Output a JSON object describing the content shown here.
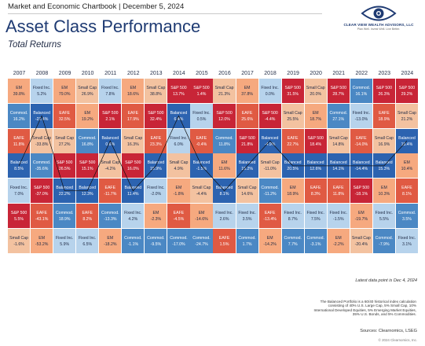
{
  "header": {
    "title": "Market and Economic Chartbook | December 5, 2024",
    "logo_name": "CLEAR VIEW WEALTH ADVISORS, LLC",
    "logo_sub": "Plan Well. Invest Well. Live Better."
  },
  "page": {
    "title": "Asset Class Performance",
    "subtitle": "Total Returns"
  },
  "colors": {
    "EM": "#f6a97f",
    "Fixed Inc.": "#b7d3ec",
    "Small Cap": "#f3c2a0",
    "S&P 500": "#c82537",
    "Commod.": "#4b88c4",
    "Balanced": "#2c63b0",
    "EAFE": "#e05a43"
  },
  "chart_data": {
    "type": "table",
    "title": "Asset Class Performance",
    "subtitle": "Total Returns",
    "years": [
      "2007",
      "2008",
      "2009",
      "2010",
      "2011",
      "2012",
      "2013",
      "2014",
      "2015",
      "2016",
      "2017",
      "2018",
      "2019",
      "2020",
      "2021",
      "2022",
      "2023",
      "2024"
    ],
    "columns": [
      [
        [
          "EM",
          "39.8%"
        ],
        [
          "Commod.",
          "16.2%"
        ],
        [
          "EAFE",
          "11.8%"
        ],
        [
          "Balanced",
          "8.5%"
        ],
        [
          "Fixed Inc.",
          "7.0%"
        ],
        [
          "S&P 500",
          "5.5%"
        ],
        [
          "Small Cap",
          "-1.6%"
        ]
      ],
      [
        [
          "Fixed Inc.",
          "5.2%"
        ],
        [
          "Balanced",
          "-23.4%"
        ],
        [
          "Small Cap",
          "-33.8%"
        ],
        [
          "Commod.",
          "-35.6%"
        ],
        [
          "S&P 500",
          "-37.0%"
        ],
        [
          "EAFE",
          "-43.1%"
        ],
        [
          "EM",
          "-53.2%"
        ]
      ],
      [
        [
          "EM",
          "79.0%"
        ],
        [
          "EAFE",
          "32.5%"
        ],
        [
          "Small Cap",
          "27.2%"
        ],
        [
          "S&P 500",
          "26.5%"
        ],
        [
          "Balanced",
          "22.2%"
        ],
        [
          "Commod.",
          "18.9%"
        ],
        [
          "Fixed Inc.",
          "5.9%"
        ]
      ],
      [
        [
          "Small Cap",
          "26.9%"
        ],
        [
          "EM",
          "19.2%"
        ],
        [
          "Commod.",
          "16.8%"
        ],
        [
          "S&P 500",
          "15.1%"
        ],
        [
          "Balanced",
          "12.3%"
        ],
        [
          "EAFE",
          "8.2%"
        ],
        [
          "Fixed Inc.",
          "6.5%"
        ]
      ],
      [
        [
          "Fixed Inc.",
          "7.8%"
        ],
        [
          "S&P 500",
          "2.1%"
        ],
        [
          "Balanced",
          "0.6%"
        ],
        [
          "Small Cap",
          "-4.2%"
        ],
        [
          "EAFE",
          "-11.7%"
        ],
        [
          "Commod.",
          "-13.3%"
        ],
        [
          "EM",
          "-18.2%"
        ]
      ],
      [
        [
          "EM",
          "18.6%"
        ],
        [
          "EAFE",
          "17.9%"
        ],
        [
          "Small Cap",
          "16.3%"
        ],
        [
          "S&P 500",
          "16.0%"
        ],
        [
          "Balanced",
          "11.4%"
        ],
        [
          "Fixed Inc.",
          "4.2%"
        ],
        [
          "Commod.",
          "-1.1%"
        ]
      ],
      [
        [
          "Small Cap",
          "38.8%"
        ],
        [
          "S&P 500",
          "32.4%"
        ],
        [
          "EAFE",
          "23.3%"
        ],
        [
          "Balanced",
          "15.9%"
        ],
        [
          "Fixed Inc.",
          "-2.0%"
        ],
        [
          "EM",
          "-2.3%"
        ],
        [
          "Commod.",
          "-9.5%"
        ]
      ],
      [
        [
          "S&P 500",
          "13.7%"
        ],
        [
          "Balanced",
          "6.4%"
        ],
        [
          "Fixed Inc.",
          "6.0%"
        ],
        [
          "Small Cap",
          "4.9%"
        ],
        [
          "EM",
          "-1.8%"
        ],
        [
          "EAFE",
          "-4.5%"
        ],
        [
          "Commod.",
          "-17.0%"
        ]
      ],
      [
        [
          "S&P 500",
          "1.4%"
        ],
        [
          "Fixed Inc.",
          "0.5%"
        ],
        [
          "EAFE",
          "-0.4%"
        ],
        [
          "Balanced",
          "-1.5%"
        ],
        [
          "Small Cap",
          "-4.4%"
        ],
        [
          "EM",
          "-14.6%"
        ],
        [
          "Commod.",
          "-24.7%"
        ]
      ],
      [
        [
          "Small Cap",
          "21.3%"
        ],
        [
          "S&P 500",
          "12.0%"
        ],
        [
          "Commod.",
          "11.8%"
        ],
        [
          "EM",
          "11.6%"
        ],
        [
          "Balanced",
          "8.1%"
        ],
        [
          "Fixed Inc.",
          "2.6%"
        ],
        [
          "EAFE",
          "1.5%"
        ]
      ],
      [
        [
          "EM",
          "37.8%"
        ],
        [
          "EAFE",
          "25.6%"
        ],
        [
          "S&P 500",
          "21.8%"
        ],
        [
          "Balanced",
          "15.2%"
        ],
        [
          "Small Cap",
          "14.6%"
        ],
        [
          "Fixed Inc.",
          "3.5%"
        ],
        [
          "Commod.",
          "1.7%"
        ]
      ],
      [
        [
          "Fixed Inc.",
          "0.0%"
        ],
        [
          "S&P 500",
          "-4.4%"
        ],
        [
          "Balanced",
          "-4.9%"
        ],
        [
          "Small Cap",
          "-11.0%"
        ],
        [
          "Commod.",
          "-11.2%"
        ],
        [
          "EAFE",
          "-13.4%"
        ],
        [
          "EM",
          "-14.2%"
        ]
      ],
      [
        [
          "S&P 500",
          "31.5%"
        ],
        [
          "Small Cap",
          "25.5%"
        ],
        [
          "EAFE",
          "22.7%"
        ],
        [
          "Balanced",
          "20.5%"
        ],
        [
          "EM",
          "18.9%"
        ],
        [
          "Fixed Inc.",
          "8.7%"
        ],
        [
          "Commod.",
          "7.7%"
        ]
      ],
      [
        [
          "Small Cap",
          "20.0%"
        ],
        [
          "EM",
          "18.7%"
        ],
        [
          "S&P 500",
          "18.4%"
        ],
        [
          "Balanced",
          "12.6%"
        ],
        [
          "EAFE",
          "8.3%"
        ],
        [
          "Fixed Inc.",
          "7.5%"
        ],
        [
          "Commod.",
          "-3.1%"
        ]
      ],
      [
        [
          "S&P 500",
          "28.7%"
        ],
        [
          "Commod.",
          "27.1%"
        ],
        [
          "Small Cap",
          "14.8%"
        ],
        [
          "Balanced",
          "14.1%"
        ],
        [
          "EAFE",
          "11.8%"
        ],
        [
          "Fixed Inc.",
          "-1.5%"
        ],
        [
          "EM",
          "-2.2%"
        ]
      ],
      [
        [
          "Commod.",
          "16.1%"
        ],
        [
          "Fixed Inc.",
          "-13.0%"
        ],
        [
          "EAFE",
          "-14.0%"
        ],
        [
          "Balanced",
          "-14.4%"
        ],
        [
          "S&P 500",
          "-18.1%"
        ],
        [
          "EM",
          "-19.7%"
        ],
        [
          "Small Cap",
          "-20.4%"
        ]
      ],
      [
        [
          "S&P 500",
          "26.3%"
        ],
        [
          "EAFE",
          "18.9%"
        ],
        [
          "Small Cap",
          "16.9%"
        ],
        [
          "Balanced",
          "15.3%"
        ],
        [
          "EM",
          "10.3%"
        ],
        [
          "Fixed Inc.",
          "5.5%"
        ],
        [
          "Commod.",
          "-7.9%"
        ]
      ],
      [
        [
          "S&P 500",
          "29.2%"
        ],
        [
          "Small Cap",
          "21.2%"
        ],
        [
          "Balanced",
          "15.4%"
        ],
        [
          "EM",
          "10.4%"
        ],
        [
          "EAFE",
          "8.1%"
        ],
        [
          "Commod.",
          "3.5%"
        ],
        [
          "Fixed Inc.",
          "3.1%"
        ]
      ]
    ],
    "highlighted_series": "Balanced"
  },
  "footer": {
    "latest_data": "Latest data point is Dec 4, 2024",
    "description": "The Balanced Portfolio is a 60/40 historical index calculation consisting of 40% U.S. Large Cap, 5% Small Cap, 10% International Developed Equities, 5% Emerging Market Equities, 35% U.S. Bonds, and 5% Commodities.",
    "sources": "Sources: Clearnomics, LSEG",
    "copyright": "© 2024 Clearnomics, Inc."
  }
}
